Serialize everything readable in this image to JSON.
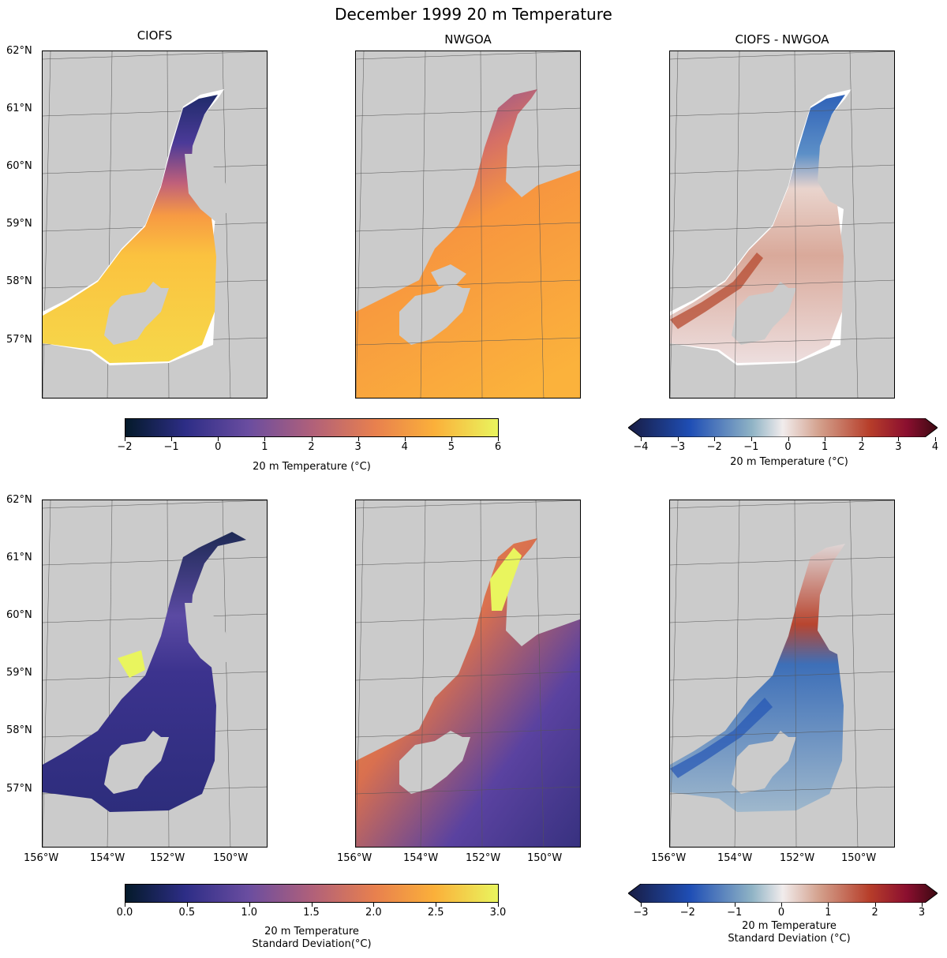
{
  "figure": {
    "title": "December 1999 20 m Temperature"
  },
  "columns": [
    "CIOFS",
    "NWGOA",
    "CIOFS - NWGOA"
  ],
  "lat_ticks": [
    "62°N",
    "61°N",
    "60°N",
    "59°N",
    "58°N",
    "57°N"
  ],
  "lon_ticks": [
    "156°W",
    "154°W",
    "152°W",
    "150°W"
  ],
  "rows": [
    {
      "quantity": "20 m Temperature (°C)",
      "panels": [
        "CIOFS",
        "NWGOA",
        "CIOFS - NWGOA"
      ]
    },
    {
      "quantity": "20 m Temperature Standard Deviation (°C)",
      "panels": [
        "CIOFS",
        "NWGOA",
        "CIOFS - NWGOA"
      ]
    }
  ],
  "colorbars": {
    "temp": {
      "label": "20 m Temperature (°C)",
      "ticks": [
        "−2",
        "−1",
        "0",
        "1",
        "2",
        "3",
        "4",
        "5",
        "6"
      ],
      "range": [
        -2,
        6
      ],
      "colormap": "thermal",
      "stops": [
        "#041a2a",
        "#2d2d86",
        "#6a4da0",
        "#b0607a",
        "#e8804e",
        "#fbb03a",
        "#e9f55e"
      ]
    },
    "temp_diff": {
      "label": "20 m Temperature (°C)",
      "ticks": [
        "−4",
        "−3",
        "−2",
        "−1",
        "0",
        "1",
        "2",
        "3",
        "4"
      ],
      "range": [
        -4,
        4
      ],
      "extend": "both",
      "colormap": "balance",
      "stops": [
        "#181c43",
        "#1f4eb5",
        "#8fb3c5",
        "#f1ecec",
        "#d39f8b",
        "#b73e2a",
        "#8b0f2f",
        "#3c0912"
      ]
    },
    "std": {
      "label_line1": "20 m Temperature",
      "label_line2": "Standard Deviation(°C)",
      "ticks": [
        "0.0",
        "0.5",
        "1.0",
        "1.5",
        "2.0",
        "2.5",
        "3.0"
      ],
      "range": [
        0,
        3
      ],
      "colormap": "thermal",
      "stops": [
        "#041a2a",
        "#2d2d86",
        "#6a4da0",
        "#b0607a",
        "#e8804e",
        "#fbb03a",
        "#e9f55e"
      ]
    },
    "std_diff": {
      "label_line1": "20 m Temperature",
      "label_line2": "Standard Deviation (°C)",
      "ticks": [
        "−3",
        "−2",
        "−1",
        "0",
        "1",
        "2",
        "3"
      ],
      "range": [
        -3,
        3
      ],
      "extend": "both",
      "colormap": "balance",
      "stops": [
        "#181c43",
        "#1f4eb5",
        "#8fb3c5",
        "#f1ecec",
        "#d39f8b",
        "#b73e2a",
        "#8b0f2f",
        "#3c0912"
      ]
    }
  },
  "colors": {
    "land": "#cbcbcb",
    "nodata": "#ffffff"
  }
}
